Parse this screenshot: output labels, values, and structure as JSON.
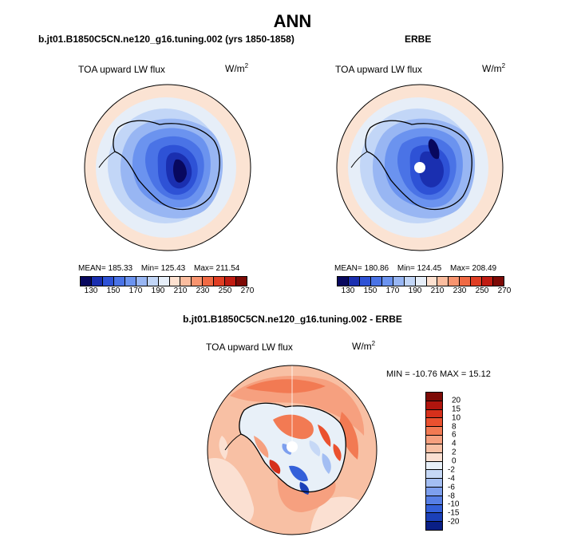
{
  "title": "ANN",
  "panels": [
    {
      "title": "b.jt01.B1850C5CN.ne120_g16.tuning.002 (yrs 1850-1858)",
      "variable": "TOA upward LW flux",
      "units": "W/m",
      "units_sup": "2",
      "stats": {
        "mean": "MEAN= 185.33",
        "min": "Min= 125.43",
        "max": "Max= 211.54"
      }
    },
    {
      "title": "ERBE",
      "variable": "TOA upward LW flux",
      "units": "W/m",
      "units_sup": "2",
      "stats": {
        "mean": "MEAN= 180.86",
        "min": "Min= 124.45",
        "max": "Max= 208.49"
      }
    },
    {
      "title": "b.jt01.B1850C5CN.ne120_g16.tuning.002 - ERBE",
      "variable": "TOA upward LW flux",
      "units": "W/m",
      "units_sup": "2",
      "stats": {
        "minmax": "MIN = -10.76  MAX =  15.12"
      }
    }
  ],
  "main_colorbar": {
    "colors": [
      "#08085e",
      "#1a2fb0",
      "#2e52d6",
      "#4a73e6",
      "#6b93ef",
      "#98b6f3",
      "#c2d6f7",
      "#e6eef8",
      "#fde1d0",
      "#fbbd9f",
      "#f8946f",
      "#f06a44",
      "#e03e24",
      "#c01c12",
      "#7d0a06"
    ],
    "labels": [
      "130",
      "150",
      "170",
      "190",
      "210",
      "230",
      "250",
      "270"
    ]
  },
  "diff_colorbar": {
    "colors": [
      "#7d0a06",
      "#b0150e",
      "#d6301b",
      "#ea512f",
      "#f27a53",
      "#f6a07f",
      "#f8c0a4",
      "#fbe0d2",
      "#e8f0f8",
      "#c6d8f6",
      "#a3bef3",
      "#7d9fee",
      "#577fe6",
      "#3460d9",
      "#1b40b8",
      "#0a1f86"
    ],
    "labels": [
      "20",
      "15",
      "10",
      "8",
      "6",
      "4",
      "2",
      "0",
      "-2",
      "-4",
      "-6",
      "-8",
      "-10",
      "-15",
      "-20"
    ]
  }
}
